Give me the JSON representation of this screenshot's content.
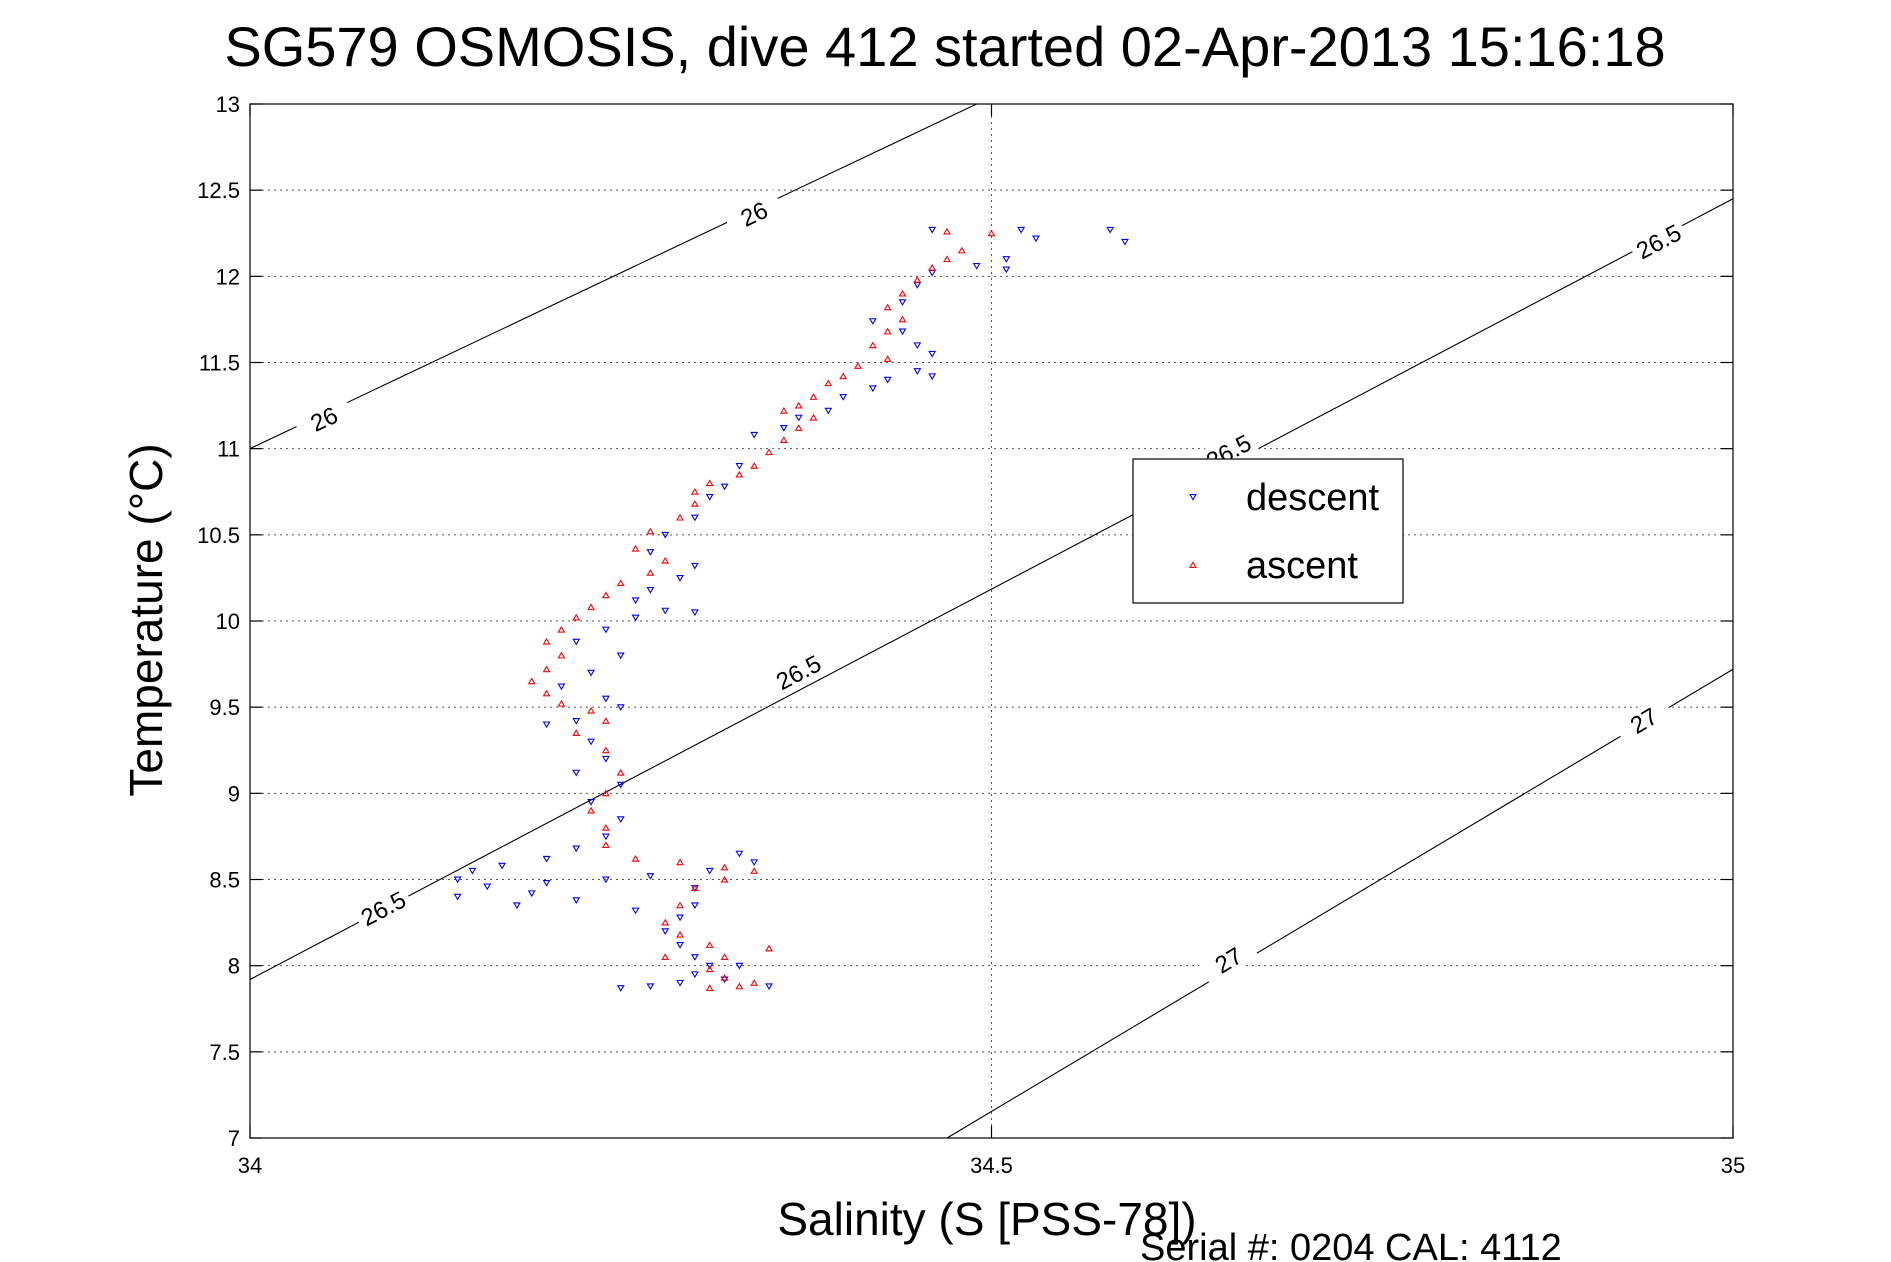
{
  "chart_data": {
    "type": "scatter",
    "title": "SG579 OSMOSIS, dive 412 started 02-Apr-2013 15:16:18",
    "xlabel": "Salinity (S [PSS-78])",
    "ylabel": "Temperature (°C)",
    "xlim": [
      34,
      35
    ],
    "ylim": [
      7,
      13
    ],
    "xticks": [
      34,
      34.5,
      35
    ],
    "xtick_labels": [
      "34",
      "34.5",
      "35"
    ],
    "yticks": [
      7,
      7.5,
      8,
      8.5,
      9,
      9.5,
      10,
      10.5,
      11,
      11.5,
      12,
      12.5,
      13
    ],
    "ytick_labels": [
      "7",
      "7.5",
      "8",
      "8.5",
      "9",
      "9.5",
      "10",
      "10.5",
      "11",
      "11.5",
      "12",
      "12.5",
      "13"
    ],
    "grid": true,
    "legend_position": "center-right",
    "footer": "Serial #: 0204  CAL: 4112",
    "isopycnals": [
      {
        "label": "26",
        "points": [
          [
            34,
            11.0
          ],
          [
            34.49,
            13.0
          ]
        ],
        "label_positions": [
          [
            34.05,
            11.17
          ],
          [
            34.34,
            12.36
          ]
        ]
      },
      {
        "label": "26.5",
        "points": [
          [
            34,
            7.92
          ],
          [
            35,
            12.45
          ]
        ],
        "label_positions": [
          [
            34.09,
            8.33
          ],
          [
            34.66,
            10.98
          ],
          [
            34.37,
            9.7
          ],
          [
            34.95,
            12.2
          ]
        ]
      },
      {
        "label": "27",
        "points": [
          [
            34.47,
            7.0
          ],
          [
            35,
            9.72
          ]
        ],
        "label_positions": [
          [
            34.66,
            8.03
          ],
          [
            34.94,
            9.42
          ]
        ]
      }
    ],
    "series": [
      {
        "name": "descent",
        "color": "#0000ff",
        "marker": "triangle-down",
        "points": [
          [
            34.58,
            12.27
          ],
          [
            34.52,
            12.27
          ],
          [
            34.46,
            12.27
          ],
          [
            34.53,
            12.22
          ],
          [
            34.59,
            12.2
          ],
          [
            34.51,
            12.1
          ],
          [
            34.49,
            12.06
          ],
          [
            34.51,
            12.04
          ],
          [
            34.46,
            12.02
          ],
          [
            34.45,
            11.95
          ],
          [
            34.44,
            11.85
          ],
          [
            34.42,
            11.74
          ],
          [
            34.44,
            11.68
          ],
          [
            34.45,
            11.6
          ],
          [
            34.46,
            11.55
          ],
          [
            34.45,
            11.45
          ],
          [
            34.46,
            11.42
          ],
          [
            34.43,
            11.4
          ],
          [
            34.42,
            11.35
          ],
          [
            34.4,
            11.3
          ],
          [
            34.39,
            11.22
          ],
          [
            34.37,
            11.18
          ],
          [
            34.36,
            11.12
          ],
          [
            34.34,
            11.08
          ],
          [
            34.33,
            10.9
          ],
          [
            34.32,
            10.78
          ],
          [
            34.31,
            10.72
          ],
          [
            34.3,
            10.6
          ],
          [
            34.28,
            10.5
          ],
          [
            34.27,
            10.4
          ],
          [
            34.3,
            10.32
          ],
          [
            34.29,
            10.25
          ],
          [
            34.27,
            10.18
          ],
          [
            34.26,
            10.12
          ],
          [
            34.28,
            10.06
          ],
          [
            34.3,
            10.05
          ],
          [
            34.26,
            10.02
          ],
          [
            34.24,
            9.95
          ],
          [
            34.22,
            9.88
          ],
          [
            34.25,
            9.8
          ],
          [
            34.23,
            9.7
          ],
          [
            34.21,
            9.62
          ],
          [
            34.24,
            9.55
          ],
          [
            34.25,
            9.5
          ],
          [
            34.22,
            9.42
          ],
          [
            34.2,
            9.4
          ],
          [
            34.23,
            9.3
          ],
          [
            34.24,
            9.2
          ],
          [
            34.22,
            9.12
          ],
          [
            34.25,
            9.05
          ],
          [
            34.23,
            8.95
          ],
          [
            34.25,
            8.85
          ],
          [
            34.24,
            8.75
          ],
          [
            34.22,
            8.68
          ],
          [
            34.2,
            8.62
          ],
          [
            34.17,
            8.58
          ],
          [
            34.15,
            8.55
          ],
          [
            34.14,
            8.5
          ],
          [
            34.16,
            8.46
          ],
          [
            34.19,
            8.42
          ],
          [
            34.22,
            8.38
          ],
          [
            34.18,
            8.35
          ],
          [
            34.14,
            8.4
          ],
          [
            34.2,
            8.48
          ],
          [
            34.24,
            8.5
          ],
          [
            34.27,
            8.52
          ],
          [
            34.31,
            8.55
          ],
          [
            34.33,
            8.65
          ],
          [
            34.34,
            8.6
          ],
          [
            34.3,
            8.45
          ],
          [
            34.3,
            8.35
          ],
          [
            34.29,
            8.28
          ],
          [
            34.28,
            8.2
          ],
          [
            34.29,
            8.12
          ],
          [
            34.3,
            8.05
          ],
          [
            34.31,
            8.0
          ],
          [
            34.3,
            7.95
          ],
          [
            34.29,
            7.9
          ],
          [
            34.32,
            7.92
          ],
          [
            34.33,
            8.0
          ],
          [
            34.35,
            7.88
          ],
          [
            34.27,
            7.88
          ],
          [
            34.25,
            7.87
          ],
          [
            34.26,
            8.32
          ]
        ]
      },
      {
        "name": "ascent",
        "color": "#ff0000",
        "marker": "triangle-up",
        "points": [
          [
            34.47,
            12.26
          ],
          [
            34.5,
            12.25
          ],
          [
            34.48,
            12.15
          ],
          [
            34.47,
            12.1
          ],
          [
            34.46,
            12.05
          ],
          [
            34.45,
            11.98
          ],
          [
            34.44,
            11.9
          ],
          [
            34.43,
            11.82
          ],
          [
            34.44,
            11.75
          ],
          [
            34.43,
            11.68
          ],
          [
            34.42,
            11.6
          ],
          [
            34.43,
            11.52
          ],
          [
            34.41,
            11.48
          ],
          [
            34.4,
            11.42
          ],
          [
            34.39,
            11.38
          ],
          [
            34.38,
            11.3
          ],
          [
            34.37,
            11.25
          ],
          [
            34.36,
            11.22
          ],
          [
            34.38,
            11.18
          ],
          [
            34.37,
            11.12
          ],
          [
            34.36,
            11.05
          ],
          [
            34.35,
            10.98
          ],
          [
            34.34,
            10.9
          ],
          [
            34.33,
            10.85
          ],
          [
            34.31,
            10.8
          ],
          [
            34.3,
            10.75
          ],
          [
            34.3,
            10.68
          ],
          [
            34.29,
            10.6
          ],
          [
            34.27,
            10.52
          ],
          [
            34.26,
            10.42
          ],
          [
            34.28,
            10.35
          ],
          [
            34.27,
            10.28
          ],
          [
            34.25,
            10.22
          ],
          [
            34.24,
            10.15
          ],
          [
            34.23,
            10.08
          ],
          [
            34.22,
            10.02
          ],
          [
            34.21,
            9.95
          ],
          [
            34.2,
            9.88
          ],
          [
            34.21,
            9.8
          ],
          [
            34.2,
            9.72
          ],
          [
            34.19,
            9.65
          ],
          [
            34.2,
            9.58
          ],
          [
            34.21,
            9.52
          ],
          [
            34.23,
            9.48
          ],
          [
            34.24,
            9.42
          ],
          [
            34.22,
            9.35
          ],
          [
            34.24,
            9.25
          ],
          [
            34.25,
            9.12
          ],
          [
            34.24,
            9.0
          ],
          [
            34.23,
            8.9
          ],
          [
            34.24,
            8.8
          ],
          [
            34.24,
            8.7
          ],
          [
            34.26,
            8.62
          ],
          [
            34.29,
            8.6
          ],
          [
            34.32,
            8.57
          ],
          [
            34.34,
            8.55
          ],
          [
            34.32,
            8.5
          ],
          [
            34.3,
            8.45
          ],
          [
            34.29,
            8.35
          ],
          [
            34.28,
            8.25
          ],
          [
            34.29,
            8.18
          ],
          [
            34.31,
            8.12
          ],
          [
            34.32,
            8.05
          ],
          [
            34.31,
            7.98
          ],
          [
            34.32,
            7.93
          ],
          [
            34.33,
            7.88
          ],
          [
            34.34,
            7.9
          ],
          [
            34.31,
            7.87
          ],
          [
            34.35,
            8.1
          ],
          [
            34.28,
            8.05
          ]
        ]
      }
    ]
  }
}
